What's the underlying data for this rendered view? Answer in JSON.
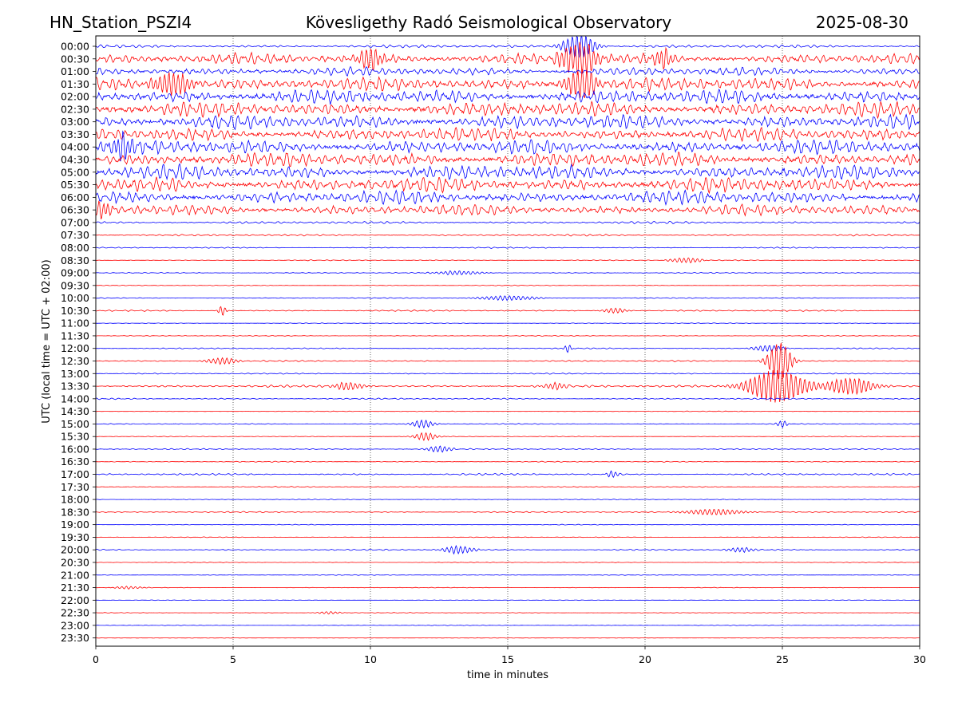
{
  "header": {
    "station": "HN_Station_PSZI4",
    "observatory": "Kövesligethy Radó Seismological Observatory",
    "date": "2025-08-30"
  },
  "colors": {
    "even_trace": "#0000ff",
    "odd_trace": "#ff0000",
    "axes": "#000000",
    "grid": "#000000"
  },
  "chart_data": {
    "type": "line",
    "xlabel": "time in minutes",
    "ylabel": "UTC (local time = UTC + 02:00)",
    "xlim": [
      0,
      30
    ],
    "x_ticks": [
      "0",
      "5",
      "10",
      "15",
      "20",
      "25",
      "30"
    ],
    "grid": "vertical dotted at 5, 10, 15, 20, 25",
    "row_labels": [
      "00:00",
      "00:30",
      "01:00",
      "01:30",
      "02:00",
      "02:30",
      "03:00",
      "03:30",
      "04:00",
      "04:30",
      "05:00",
      "05:30",
      "06:00",
      "06:30",
      "07:00",
      "07:30",
      "08:00",
      "08:30",
      "09:00",
      "09:30",
      "10:00",
      "10:30",
      "11:00",
      "11:30",
      "12:00",
      "12:30",
      "13:00",
      "13:30",
      "14:00",
      "14:30",
      "15:00",
      "15:30",
      "16:00",
      "16:30",
      "17:00",
      "17:30",
      "18:00",
      "18:30",
      "19:00",
      "19:30",
      "20:00",
      "20:30",
      "21:00",
      "21:30",
      "22:00",
      "22:30",
      "23:00",
      "23:30"
    ],
    "noise_level": [
      0.25,
      0.9,
      0.7,
      1.1,
      1.2,
      1.2,
      1.2,
      1.1,
      1.2,
      1.2,
      1.2,
      1.2,
      1.1,
      0.9,
      0.2,
      0.15,
      0.1,
      0.08,
      0.08,
      0.06,
      0.08,
      0.12,
      0.06,
      0.06,
      0.1,
      0.12,
      0.1,
      0.2,
      0.12,
      0.06,
      0.08,
      0.06,
      0.1,
      0.08,
      0.15,
      0.08,
      0.06,
      0.1,
      0.06,
      0.06,
      0.12,
      0.05,
      0.06,
      0.05,
      0.05,
      0.05,
      0.05,
      0.04
    ],
    "events": [
      {
        "row": 0,
        "t": 17.6,
        "amp": 2.0,
        "dur": 0.8
      },
      {
        "row": 1,
        "t": 17.6,
        "amp": 2.5,
        "dur": 1.0
      },
      {
        "row": 1,
        "t": 10.0,
        "amp": 1.5,
        "dur": 0.8
      },
      {
        "row": 1,
        "t": 20.6,
        "amp": 1.5,
        "dur": 0.5
      },
      {
        "row": 3,
        "t": 17.7,
        "amp": 2.5,
        "dur": 0.8
      },
      {
        "row": 3,
        "t": 2.8,
        "amp": 1.8,
        "dur": 1.0
      },
      {
        "row": 8,
        "t": 1.0,
        "amp": 1.5,
        "dur": 0.8
      },
      {
        "row": 13,
        "t": 0.3,
        "amp": 1.2,
        "dur": 0.5
      },
      {
        "row": 17,
        "t": 21.5,
        "amp": 0.4,
        "dur": 0.8
      },
      {
        "row": 18,
        "t": 13.2,
        "amp": 0.3,
        "dur": 1.2
      },
      {
        "row": 20,
        "t": 15.0,
        "amp": 0.35,
        "dur": 1.5
      },
      {
        "row": 21,
        "t": 4.6,
        "amp": 0.8,
        "dur": 0.2
      },
      {
        "row": 21,
        "t": 18.9,
        "amp": 0.4,
        "dur": 0.6
      },
      {
        "row": 24,
        "t": 17.2,
        "amp": 0.6,
        "dur": 0.2
      },
      {
        "row": 24,
        "t": 24.5,
        "amp": 0.5,
        "dur": 0.8
      },
      {
        "row": 25,
        "t": 4.6,
        "amp": 0.5,
        "dur": 0.8
      },
      {
        "row": 25,
        "t": 24.9,
        "amp": 3.0,
        "dur": 0.6
      },
      {
        "row": 27,
        "t": 9.2,
        "amp": 0.6,
        "dur": 0.8
      },
      {
        "row": 27,
        "t": 16.7,
        "amp": 0.5,
        "dur": 0.6
      },
      {
        "row": 27,
        "t": 24.8,
        "amp": 2.6,
        "dur": 1.5
      },
      {
        "row": 27,
        "t": 27.5,
        "amp": 1.3,
        "dur": 1.2
      },
      {
        "row": 30,
        "t": 11.9,
        "amp": 0.6,
        "dur": 0.6
      },
      {
        "row": 30,
        "t": 25.0,
        "amp": 0.5,
        "dur": 0.3
      },
      {
        "row": 31,
        "t": 12.0,
        "amp": 0.6,
        "dur": 0.6
      },
      {
        "row": 32,
        "t": 12.5,
        "amp": 0.5,
        "dur": 0.6
      },
      {
        "row": 34,
        "t": 18.8,
        "amp": 0.5,
        "dur": 0.3
      },
      {
        "row": 37,
        "t": 22.5,
        "amp": 0.45,
        "dur": 1.5
      },
      {
        "row": 40,
        "t": 13.2,
        "amp": 0.6,
        "dur": 0.8
      },
      {
        "row": 40,
        "t": 23.5,
        "amp": 0.4,
        "dur": 0.6
      },
      {
        "row": 43,
        "t": 1.2,
        "amp": 0.2,
        "dur": 0.8
      },
      {
        "row": 45,
        "t": 8.5,
        "amp": 0.2,
        "dur": 0.6
      }
    ]
  }
}
